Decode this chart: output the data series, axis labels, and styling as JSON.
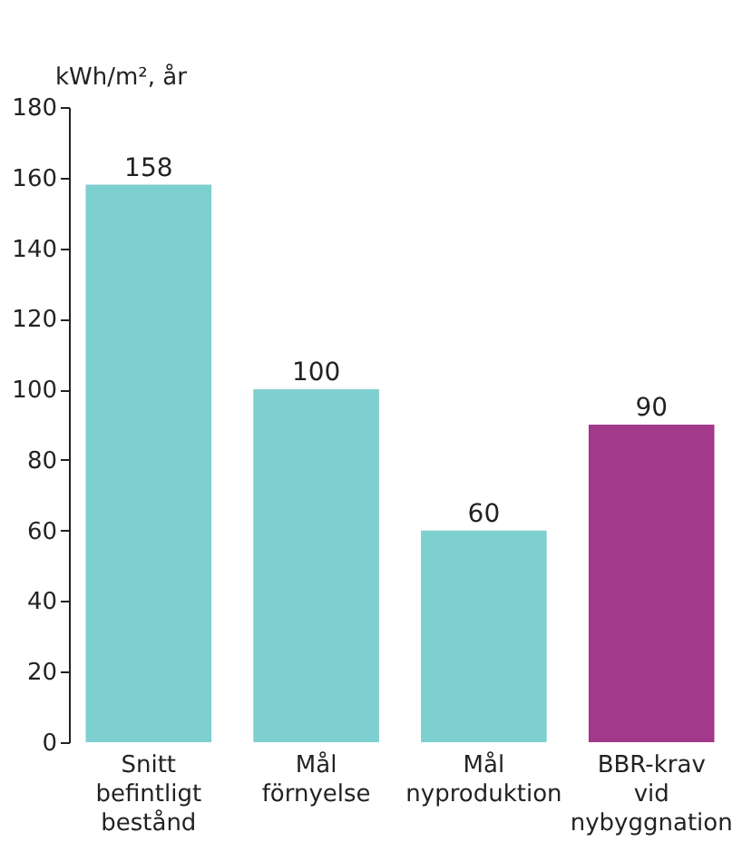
{
  "chart_data": {
    "type": "bar",
    "ylabel": "kWh/m², år",
    "categories": [
      "Snitt befintligt bestånd",
      "Mål förnyelse",
      "Mål nyproduktion",
      "BBR-krav vid nybyggnation"
    ],
    "values": [
      158,
      100,
      60,
      90
    ],
    "colors": [
      "#7ecfd0",
      "#7ecfd0",
      "#7ecfd0",
      "#a3398a"
    ],
    "ylim": [
      0,
      180
    ],
    "yticks": [
      0,
      20,
      40,
      60,
      80,
      100,
      120,
      140,
      160,
      180
    ],
    "data_labels": true,
    "grid": false,
    "legend": false
  }
}
